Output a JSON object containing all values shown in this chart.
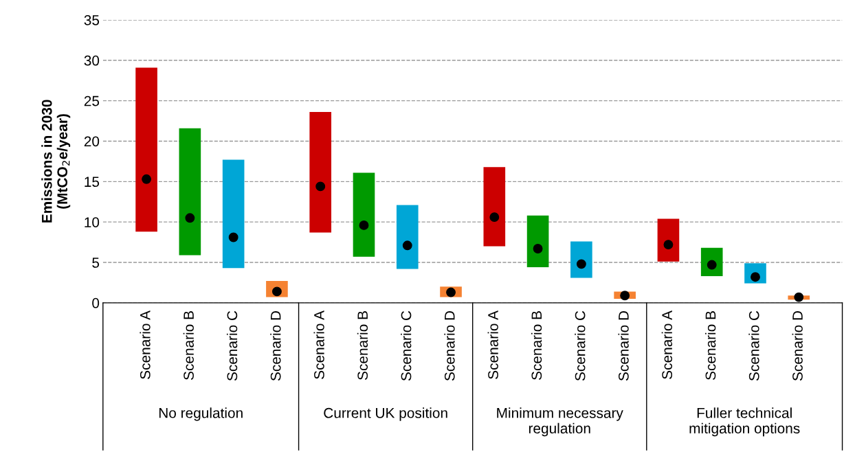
{
  "chart_data": {
    "type": "bar",
    "ylabel": "Emissions in 2030\n(MtCO$_{2}$e/year)",
    "categories": [
      "Scenario A",
      "Scenario B",
      "Scenario C",
      "Scenario D",
      "Scenario A",
      "Scenario B",
      "Scenario C",
      "Scenario D",
      "Scenario A",
      "Scenario B",
      "Scenario C",
      "Scenario D",
      "Scenario A",
      "Scenario B",
      "Scenario C",
      "Scenario D"
    ],
    "series": [
      {
        "colors": [
          "#cc0000",
          "#009a00",
          "#00a6d6",
          "#f58232",
          "#cc0000",
          "#009a00",
          "#00a6d6",
          "#f58232",
          "#cc0000",
          "#009a00",
          "#00a6d6",
          "#f58232",
          "#cc0000",
          "#009a00",
          "#00a6d6",
          "#f58232"
        ],
        "base": [
          8.8,
          5.9,
          4.3,
          0.7,
          8.7,
          5.7,
          4.2,
          0.7,
          7.0,
          4.4,
          3.1,
          0.5,
          5.1,
          3.3,
          2.4,
          0.4
        ],
        "values": [
          20.3,
          15.7,
          13.4,
          2.0,
          14.9,
          10.4,
          7.9,
          1.3,
          9.8,
          6.4,
          4.5,
          0.9,
          5.3,
          3.5,
          2.5,
          0.5
        ]
      },
      {
        "type": "scatter",
        "color": "#000000",
        "marker": "circle",
        "values": [
          15.3,
          10.5,
          8.1,
          1.4,
          14.4,
          9.6,
          7.1,
          1.3,
          10.6,
          6.7,
          4.8,
          0.9,
          7.2,
          4.7,
          3.2,
          0.7
        ]
      }
    ],
    "annotations": [
      "No regulation",
      "Current UK position",
      "Minimum necessary\nregulation",
      "Fuller technical\nmitigation options"
    ],
    "ylim": [
      0,
      35
    ],
    "yticks": [
      0,
      5,
      10,
      15,
      20,
      25,
      30,
      35
    ],
    "grid": "y",
    "legend": false
  }
}
